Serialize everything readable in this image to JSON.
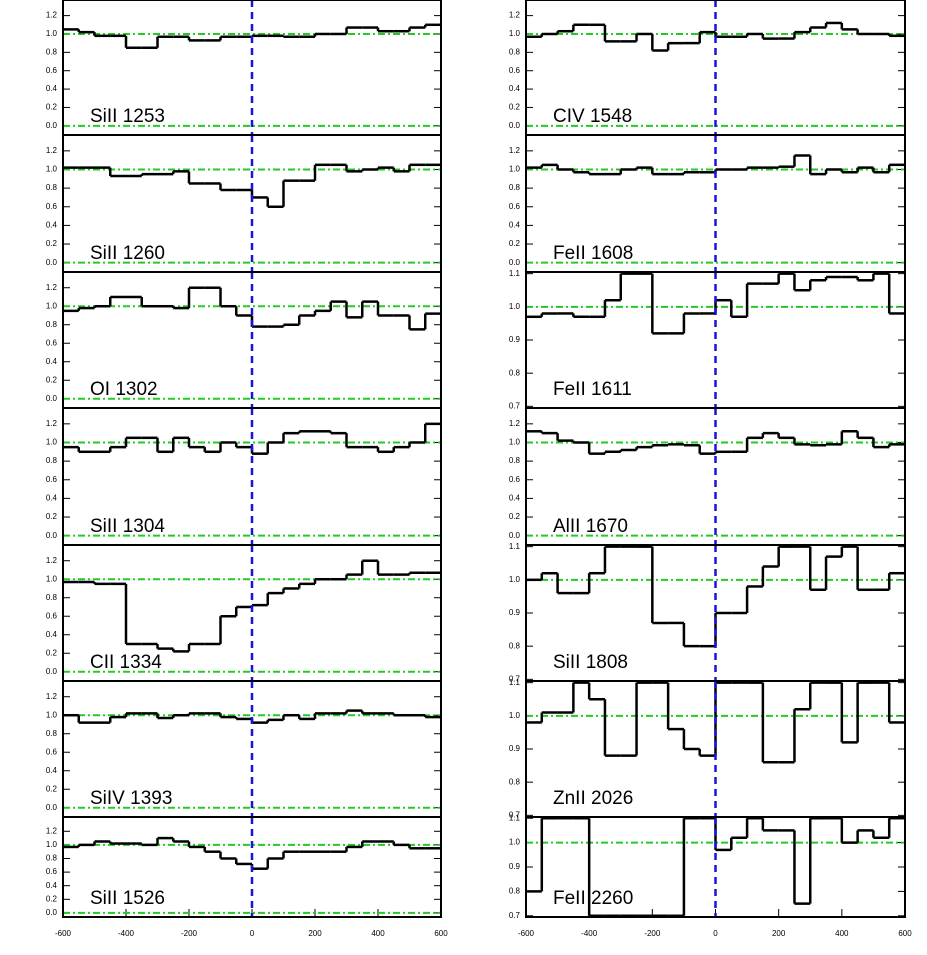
{
  "chart_data": [
    {
      "type": "line",
      "label": "SiII 1253",
      "x": [
        -575,
        -525,
        -475,
        -425,
        -375,
        -325,
        -275,
        -225,
        -175,
        -125,
        -75,
        -25,
        25,
        75,
        125,
        175,
        225,
        275,
        325,
        375,
        425,
        475,
        525,
        575
      ],
      "values": [
        1.05,
        1.02,
        0.98,
        0.98,
        0.85,
        0.85,
        0.97,
        0.97,
        0.93,
        0.93,
        0.97,
        0.97,
        0.98,
        0.98,
        0.97,
        0.97,
        1.0,
        1.0,
        1.07,
        1.07,
        1.03,
        1.03,
        1.07,
        1.1
      ],
      "color": "#000000",
      "xlim": [
        -600,
        600
      ],
      "ylim": [
        -0.1,
        1.37
      ],
      "yticks": [
        {
          "value": 0,
          "label": "0.0"
        },
        0.2,
        0.4,
        0.6,
        0.8,
        {
          "value": 1,
          "label": "1.0"
        },
        1.2
      ],
      "hlines": [
        0,
        1
      ],
      "hline_color": "#22cc22",
      "vline": 0,
      "vline_color": "#1515dd"
    },
    {
      "type": "line",
      "label": "SiII 1260",
      "x": [
        -575,
        -525,
        -475,
        -425,
        -375,
        -325,
        -275,
        -225,
        -175,
        -125,
        -75,
        -25,
        25,
        75,
        125,
        175,
        225,
        275,
        325,
        375,
        425,
        475,
        525,
        575
      ],
      "values": [
        1.02,
        1.02,
        1.02,
        0.93,
        0.93,
        0.95,
        0.95,
        0.98,
        0.85,
        0.85,
        0.78,
        0.78,
        0.7,
        0.6,
        0.88,
        0.88,
        1.05,
        1.05,
        0.98,
        1.0,
        1.02,
        0.98,
        1.05,
        1.05
      ],
      "color": "#000000",
      "xlim": [
        -600,
        600
      ],
      "ylim": [
        -0.1,
        1.37
      ],
      "yticks": [
        {
          "value": 0,
          "label": "0.0"
        },
        0.2,
        0.4,
        0.6,
        0.8,
        {
          "value": 1,
          "label": "1.0"
        },
        1.2
      ],
      "hlines": [
        0,
        1
      ],
      "hline_color": "#22cc22",
      "vline": 0,
      "vline_color": "#1515dd"
    },
    {
      "type": "line",
      "label": "OI 1302",
      "x": [
        -575,
        -525,
        -475,
        -425,
        -375,
        -325,
        -275,
        -225,
        -175,
        -125,
        -75,
        -25,
        25,
        75,
        125,
        175,
        225,
        275,
        325,
        375,
        425,
        475,
        525,
        575
      ],
      "values": [
        0.95,
        0.98,
        1.0,
        1.1,
        1.1,
        1.0,
        1.0,
        0.98,
        1.2,
        1.2,
        1.0,
        0.9,
        0.78,
        0.78,
        0.8,
        0.9,
        0.95,
        1.05,
        0.88,
        1.05,
        0.9,
        0.9,
        0.75,
        0.92
      ],
      "color": "#000000",
      "xlim": [
        -600,
        600
      ],
      "ylim": [
        -0.1,
        1.37
      ],
      "yticks": [
        {
          "value": 0,
          "label": "0.0"
        },
        0.2,
        0.4,
        0.6,
        0.8,
        {
          "value": 1,
          "label": "1.0"
        },
        1.2
      ],
      "hlines": [
        0,
        1
      ],
      "hline_color": "#22cc22",
      "vline": 0,
      "vline_color": "#1515dd"
    },
    {
      "type": "line",
      "label": "SiII 1304",
      "x": [
        -575,
        -525,
        -475,
        -425,
        -375,
        -325,
        -275,
        -225,
        -175,
        -125,
        -75,
        -25,
        25,
        75,
        125,
        175,
        225,
        275,
        325,
        375,
        425,
        475,
        525,
        575
      ],
      "values": [
        0.95,
        0.9,
        0.9,
        0.95,
        1.05,
        1.05,
        0.9,
        1.05,
        0.95,
        0.9,
        1.0,
        0.95,
        0.88,
        1.0,
        1.1,
        1.12,
        1.12,
        1.1,
        0.95,
        0.95,
        0.9,
        0.95,
        1.0,
        1.2
      ],
      "color": "#000000",
      "xlim": [
        -600,
        600
      ],
      "ylim": [
        -0.1,
        1.37
      ],
      "yticks": [
        {
          "value": 0,
          "label": "0.0"
        },
        0.2,
        0.4,
        0.6,
        0.8,
        {
          "value": 1,
          "label": "1.0"
        },
        1.2
      ],
      "hlines": [
        0,
        1
      ],
      "hline_color": "#22cc22",
      "vline": 0,
      "vline_color": "#1515dd"
    },
    {
      "type": "line",
      "label": "CII 1334",
      "x": [
        -575,
        -525,
        -475,
        -425,
        -375,
        -325,
        -275,
        -225,
        -175,
        -125,
        -75,
        -25,
        25,
        75,
        125,
        175,
        225,
        275,
        325,
        375,
        425,
        475,
        525,
        575
      ],
      "values": [
        0.97,
        0.97,
        0.95,
        0.95,
        0.3,
        0.3,
        0.25,
        0.22,
        0.3,
        0.3,
        0.6,
        0.7,
        0.72,
        0.85,
        0.9,
        0.95,
        1.0,
        1.0,
        1.05,
        1.2,
        1.05,
        1.05,
        1.07,
        1.07
      ],
      "color": "#000000",
      "xlim": [
        -600,
        600
      ],
      "ylim": [
        -0.1,
        1.37
      ],
      "yticks": [
        {
          "value": 0,
          "label": "0.0"
        },
        0.2,
        0.4,
        0.6,
        0.8,
        {
          "value": 1,
          "label": "1.0"
        },
        1.2
      ],
      "hlines": [
        0,
        1
      ],
      "hline_color": "#22cc22",
      "vline": 0,
      "vline_color": "#1515dd"
    },
    {
      "type": "line",
      "label": "SiIV 1393",
      "x": [
        -575,
        -525,
        -475,
        -425,
        -375,
        -325,
        -275,
        -225,
        -175,
        -125,
        -75,
        -25,
        25,
        75,
        125,
        175,
        225,
        275,
        325,
        375,
        425,
        475,
        525,
        575
      ],
      "values": [
        1.0,
        0.92,
        0.92,
        0.98,
        1.02,
        1.02,
        0.97,
        1.0,
        1.02,
        1.02,
        0.98,
        0.96,
        0.92,
        0.95,
        1.0,
        0.96,
        1.02,
        1.02,
        1.05,
        1.02,
        1.02,
        1.0,
        1.0,
        0.98
      ],
      "color": "#000000",
      "xlim": [
        -600,
        600
      ],
      "ylim": [
        -0.1,
        1.37
      ],
      "yticks": [
        {
          "value": 0,
          "label": "0.0"
        },
        0.2,
        0.4,
        0.6,
        0.8,
        {
          "value": 1,
          "label": "1.0"
        },
        1.2
      ],
      "hlines": [
        0,
        1
      ],
      "hline_color": "#22cc22",
      "vline": 0,
      "vline_color": "#1515dd"
    },
    {
      "type": "line",
      "label": "SiII 1526",
      "x": [
        -575,
        -525,
        -475,
        -425,
        -375,
        -325,
        -275,
        -225,
        -175,
        -125,
        -75,
        -25,
        25,
        75,
        125,
        175,
        225,
        275,
        325,
        375,
        425,
        475,
        525,
        575
      ],
      "values": [
        0.97,
        1.0,
        1.05,
        1.02,
        1.02,
        1.0,
        1.1,
        1.05,
        0.97,
        0.9,
        0.8,
        0.72,
        0.65,
        0.8,
        0.9,
        0.9,
        0.9,
        0.9,
        0.97,
        1.05,
        1.05,
        1.0,
        0.95,
        0.95
      ],
      "color": "#000000",
      "xlim": [
        -600,
        600
      ],
      "ylim": [
        -0.06,
        1.41
      ],
      "yticks": [
        {
          "value": 0,
          "label": "0.0"
        },
        0.2,
        0.4,
        0.6,
        0.8,
        {
          "value": 1,
          "label": "1.0"
        },
        1.2
      ],
      "xticks": [
        -600,
        -400,
        -200,
        0,
        200,
        400,
        600
      ],
      "hlines": [
        0,
        1
      ],
      "hline_color": "#22cc22",
      "vline": 0,
      "vline_color": "#1515dd"
    },
    {
      "type": "line",
      "label": "CIV 1548",
      "x": [
        -575,
        -525,
        -475,
        -425,
        -375,
        -325,
        -275,
        -225,
        -175,
        -125,
        -75,
        -25,
        25,
        75,
        125,
        175,
        225,
        275,
        325,
        375,
        425,
        475,
        525,
        575
      ],
      "values": [
        0.97,
        1.0,
        1.03,
        1.1,
        1.1,
        0.92,
        0.92,
        1.0,
        0.82,
        0.9,
        0.9,
        1.02,
        0.97,
        0.97,
        1.0,
        0.95,
        0.95,
        1.02,
        1.07,
        1.12,
        1.05,
        1.0,
        1.0,
        0.98
      ],
      "color": "#000000",
      "xlim": [
        -600,
        600
      ],
      "ylim": [
        -0.1,
        1.37
      ],
      "yticks": [
        {
          "value": 0,
          "label": "0.0"
        },
        0.2,
        0.4,
        0.6,
        0.8,
        {
          "value": 1,
          "label": "1.0"
        },
        1.2
      ],
      "hlines": [
        0,
        1
      ],
      "hline_color": "#22cc22",
      "vline": 0,
      "vline_color": "#1515dd"
    },
    {
      "type": "line",
      "label": "FeII 1608",
      "x": [
        -575,
        -525,
        -475,
        -425,
        -375,
        -325,
        -275,
        -225,
        -175,
        -125,
        -75,
        -25,
        25,
        75,
        125,
        175,
        225,
        275,
        325,
        375,
        425,
        475,
        525,
        575
      ],
      "values": [
        1.02,
        1.05,
        1.0,
        0.97,
        0.95,
        0.95,
        1.0,
        1.02,
        0.95,
        0.95,
        0.97,
        0.97,
        1.0,
        1.0,
        1.02,
        1.02,
        1.03,
        1.15,
        0.95,
        1.0,
        0.97,
        1.02,
        0.97,
        1.05
      ],
      "color": "#000000",
      "xlim": [
        -600,
        600
      ],
      "ylim": [
        -0.1,
        1.37
      ],
      "yticks": [
        {
          "value": 0,
          "label": "0.0"
        },
        0.2,
        0.4,
        0.6,
        0.8,
        {
          "value": 1,
          "label": "1.0"
        },
        1.2
      ],
      "hlines": [
        0,
        1
      ],
      "hline_color": "#22cc22",
      "vline": 0,
      "vline_color": "#1515dd"
    },
    {
      "type": "line",
      "label": "FeII 1611",
      "x": [
        -575,
        -525,
        -475,
        -425,
        -375,
        -325,
        -275,
        -225,
        -175,
        -125,
        -75,
        -25,
        25,
        75,
        125,
        175,
        225,
        275,
        325,
        375,
        425,
        475,
        525,
        575
      ],
      "values": [
        0.97,
        0.98,
        0.98,
        0.97,
        0.97,
        1.02,
        1.1,
        1.1,
        0.92,
        0.92,
        0.98,
        0.98,
        1.02,
        0.97,
        1.07,
        1.07,
        1.1,
        1.05,
        1.08,
        1.09,
        1.09,
        1.08,
        1.1,
        0.98
      ],
      "color": "#000000",
      "xlim": [
        -600,
        600
      ],
      "ylim": [
        0.695,
        1.105
      ],
      "yticks": [
        0.7,
        0.8,
        0.9,
        {
          "value": 1,
          "label": "1.0"
        },
        1.1
      ],
      "hlines": [
        1
      ],
      "hline_color": "#22cc22",
      "vline": 0,
      "vline_color": "#1515dd"
    },
    {
      "type": "line",
      "label": "AlII 1670",
      "x": [
        -575,
        -525,
        -475,
        -425,
        -375,
        -325,
        -275,
        -225,
        -175,
        -125,
        -75,
        -25,
        25,
        75,
        125,
        175,
        225,
        275,
        325,
        375,
        425,
        475,
        525,
        575
      ],
      "values": [
        1.12,
        1.1,
        1.02,
        1.0,
        0.88,
        0.9,
        0.92,
        0.95,
        0.97,
        0.98,
        0.97,
        0.88,
        0.9,
        0.9,
        1.05,
        1.1,
        1.05,
        0.98,
        0.97,
        0.98,
        1.12,
        1.05,
        0.95,
        0.98
      ],
      "color": "#000000",
      "xlim": [
        -600,
        600
      ],
      "ylim": [
        -0.1,
        1.37
      ],
      "yticks": [
        {
          "value": 0,
          "label": "0.0"
        },
        0.2,
        0.4,
        0.6,
        0.8,
        {
          "value": 1,
          "label": "1.0"
        },
        1.2
      ],
      "hlines": [
        0,
        1
      ],
      "hline_color": "#22cc22",
      "vline": 0,
      "vline_color": "#1515dd"
    },
    {
      "type": "line",
      "label": "SiII 1808",
      "x": [
        -575,
        -525,
        -475,
        -425,
        -375,
        -325,
        -275,
        -225,
        -175,
        -125,
        -75,
        -25,
        25,
        75,
        125,
        175,
        225,
        275,
        325,
        375,
        425,
        475,
        525,
        575
      ],
      "values": [
        1.0,
        1.02,
        0.96,
        0.96,
        1.02,
        1.1,
        1.1,
        1.1,
        0.87,
        0.87,
        0.8,
        0.8,
        0.9,
        0.9,
        0.98,
        1.04,
        1.1,
        1.1,
        0.97,
        1.07,
        1.1,
        0.97,
        0.97,
        1.02
      ],
      "color": "#000000",
      "xlim": [
        -600,
        600
      ],
      "ylim": [
        0.695,
        1.105
      ],
      "yticks": [
        0.7,
        0.8,
        0.9,
        {
          "value": 1,
          "label": "1.0"
        },
        1.1
      ],
      "hlines": [
        1
      ],
      "hline_color": "#22cc22",
      "vline": 0,
      "vline_color": "#1515dd"
    },
    {
      "type": "line",
      "label": "ZnII 2026",
      "x": [
        -575,
        -525,
        -475,
        -425,
        -375,
        -325,
        -275,
        -225,
        -175,
        -125,
        -75,
        -25,
        25,
        75,
        125,
        175,
        225,
        275,
        325,
        375,
        425,
        475,
        525,
        575
      ],
      "values": [
        0.98,
        1.01,
        1.01,
        1.1,
        1.05,
        0.88,
        0.88,
        1.1,
        1.1,
        0.96,
        0.9,
        0.88,
        1.1,
        1.1,
        1.1,
        0.86,
        0.86,
        1.02,
        1.1,
        1.1,
        0.92,
        1.1,
        1.1,
        0.98
      ],
      "color": "#000000",
      "xlim": [
        -600,
        600
      ],
      "ylim": [
        0.695,
        1.105
      ],
      "yticks": [
        0.7,
        0.8,
        0.9,
        {
          "value": 1,
          "label": "1.0"
        },
        1.1
      ],
      "hlines": [
        1
      ],
      "hline_color": "#22cc22",
      "vline": 0,
      "vline_color": "#1515dd"
    },
    {
      "type": "line",
      "label": "FeII 2260",
      "x": [
        -575,
        -525,
        -475,
        -425,
        -375,
        -325,
        -275,
        -225,
        -175,
        -125,
        -75,
        -25,
        25,
        75,
        125,
        175,
        225,
        275,
        325,
        375,
        425,
        475,
        525,
        575
      ],
      "values": [
        0.8,
        1.1,
        1.1,
        1.1,
        0.7,
        0.7,
        0.7,
        0.7,
        0.7,
        0.7,
        1.1,
        1.1,
        0.97,
        1.02,
        1.1,
        1.05,
        1.05,
        0.75,
        1.1,
        1.1,
        1.0,
        1.05,
        1.02,
        1.1
      ],
      "color": "#000000",
      "xlim": [
        -600,
        600
      ],
      "ylim": [
        0.695,
        1.105
      ],
      "yticks": [
        0.7,
        0.8,
        0.9,
        {
          "value": 1,
          "label": "1.0"
        },
        1.1
      ],
      "xticks": [
        -600,
        -400,
        -200,
        0,
        200,
        400,
        600
      ],
      "hlines": [
        1
      ],
      "hline_color": "#22cc22",
      "vline": 0,
      "vline_color": "#1515dd"
    }
  ]
}
